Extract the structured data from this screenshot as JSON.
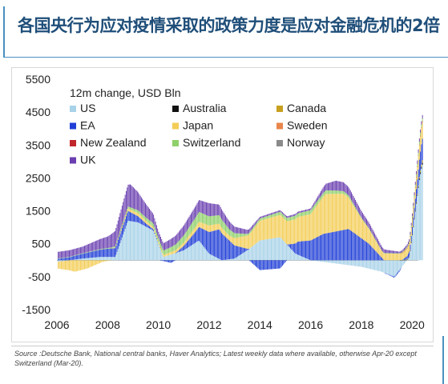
{
  "title": "各国央行为应对疫情采取的政策力度是应对金融危机的2倍",
  "note": "Source :Deutsche Bank, National central banks, Haver Analytics; Latest weekly data where available, otherwise Apr-20 except Switzerland (Mar-20).",
  "chart_data": {
    "type": "bar",
    "stacked": true,
    "legend_title": "12m change, USD Bln",
    "legend_position": "top-left",
    "grid": false,
    "xlim": [
      2006,
      2020.5
    ],
    "ylim": [
      -1500,
      5500
    ],
    "x_ticks": [
      "2006",
      "2008",
      "2010",
      "2012",
      "2014",
      "2016",
      "2018",
      "2020"
    ],
    "y_ticks": [
      "5500",
      "4500",
      "3500",
      "2500",
      "1500",
      "500",
      "-500",
      "-1500"
    ],
    "x_tick_values": [
      2006,
      2008,
      2010,
      2012,
      2014,
      2016,
      2018,
      2020
    ],
    "y_tick_values": [
      5500,
      4500,
      3500,
      2500,
      1500,
      500,
      -500,
      -1500
    ],
    "series": [
      {
        "name": "US",
        "color": "#a8d2e8",
        "points": [
          [
            2006,
            -50
          ],
          [
            2007,
            50
          ],
          [
            2007.7,
            100
          ],
          [
            2008.3,
            100
          ],
          [
            2008.8,
            1200
          ],
          [
            2009.2,
            1150
          ],
          [
            2009.8,
            900
          ],
          [
            2010.2,
            100
          ],
          [
            2011,
            300
          ],
          [
            2011.6,
            600
          ],
          [
            2012,
            200
          ],
          [
            2012.5,
            0
          ],
          [
            2013,
            50
          ],
          [
            2013.5,
            300
          ],
          [
            2014,
            600
          ],
          [
            2014.8,
            700
          ],
          [
            2015.4,
            200
          ],
          [
            2016,
            0
          ],
          [
            2017,
            -100
          ],
          [
            2018,
            -200
          ],
          [
            2018.8,
            -350
          ],
          [
            2019.3,
            -500
          ],
          [
            2019.9,
            100
          ],
          [
            2020.3,
            2500
          ],
          [
            2020.4,
            2900
          ]
        ]
      },
      {
        "name": "Australia",
        "color": "#111111",
        "points": [
          [
            2006,
            0
          ],
          [
            2019.5,
            0
          ],
          [
            2020.2,
            30
          ],
          [
            2020.4,
            60
          ]
        ]
      },
      {
        "name": "Canada",
        "color": "#c8a020",
        "points": [
          [
            2006,
            0
          ],
          [
            2019.5,
            0
          ],
          [
            2020.2,
            20
          ],
          [
            2020.4,
            80
          ]
        ]
      },
      {
        "name": "EA",
        "color": "#1f3ed6",
        "points": [
          [
            2006,
            40
          ],
          [
            2008,
            250
          ],
          [
            2008.8,
            300
          ],
          [
            2009.5,
            100
          ],
          [
            2010.5,
            -80
          ],
          [
            2011.5,
            350
          ],
          [
            2012.4,
            900
          ],
          [
            2013,
            400
          ],
          [
            2014,
            -300
          ],
          [
            2014.8,
            -250
          ],
          [
            2015.5,
            400
          ],
          [
            2016.5,
            800
          ],
          [
            2017.5,
            950
          ],
          [
            2018.3,
            500
          ],
          [
            2018.9,
            0
          ],
          [
            2019.5,
            -50
          ],
          [
            2020,
            200
          ],
          [
            2020.4,
            650
          ]
        ]
      },
      {
        "name": "Japan",
        "color": "#f3cd56",
        "points": [
          [
            2006,
            -200
          ],
          [
            2006.7,
            -350
          ],
          [
            2007.2,
            -250
          ],
          [
            2007.8,
            -50
          ],
          [
            2008.5,
            50
          ],
          [
            2009.2,
            100
          ],
          [
            2010,
            50
          ],
          [
            2011,
            100
          ],
          [
            2012,
            200
          ],
          [
            2012.8,
            150
          ],
          [
            2013.5,
            400
          ],
          [
            2014,
            600
          ],
          [
            2015,
            700
          ],
          [
            2016,
            800
          ],
          [
            2016.6,
            1200
          ],
          [
            2017.3,
            1100
          ],
          [
            2018,
            600
          ],
          [
            2018.8,
            200
          ],
          [
            2019.5,
            200
          ],
          [
            2020,
            250
          ],
          [
            2020.4,
            500
          ]
        ]
      },
      {
        "name": "Sweden",
        "color": "#e8864a",
        "points": [
          [
            2006,
            0
          ],
          [
            2019.5,
            0
          ],
          [
            2020.4,
            20
          ]
        ]
      },
      {
        "name": "New Zealand",
        "color": "#c0262b",
        "points": [
          [
            2006,
            0
          ],
          [
            2019.5,
            0
          ],
          [
            2020.4,
            10
          ]
        ]
      },
      {
        "name": "Switzerland",
        "color": "#8fd06a",
        "points": [
          [
            2006,
            10
          ],
          [
            2008,
            20
          ],
          [
            2010.5,
            150
          ],
          [
            2011.6,
            300
          ],
          [
            2012.5,
            250
          ],
          [
            2013.5,
            50
          ],
          [
            2015,
            100
          ],
          [
            2016,
            120
          ],
          [
            2017,
            100
          ],
          [
            2018,
            30
          ],
          [
            2019.5,
            10
          ],
          [
            2020.3,
            80
          ]
        ]
      },
      {
        "name": "Norway",
        "color": "#8a8a8a",
        "points": [
          [
            2006,
            0
          ],
          [
            2019.5,
            0
          ],
          [
            2020.4,
            10
          ]
        ]
      },
      {
        "name": "UK",
        "color": "#6a3fb0",
        "points": [
          [
            2006,
            200
          ],
          [
            2007,
            200
          ],
          [
            2008,
            350
          ],
          [
            2008.9,
            700
          ],
          [
            2009.3,
            500
          ],
          [
            2010,
            200
          ],
          [
            2011,
            300
          ],
          [
            2012,
            400
          ],
          [
            2013,
            200
          ],
          [
            2014,
            50
          ],
          [
            2016,
            50
          ],
          [
            2017,
            300
          ],
          [
            2018,
            200
          ],
          [
            2019.5,
            50
          ],
          [
            2020.3,
            100
          ]
        ]
      }
    ]
  }
}
